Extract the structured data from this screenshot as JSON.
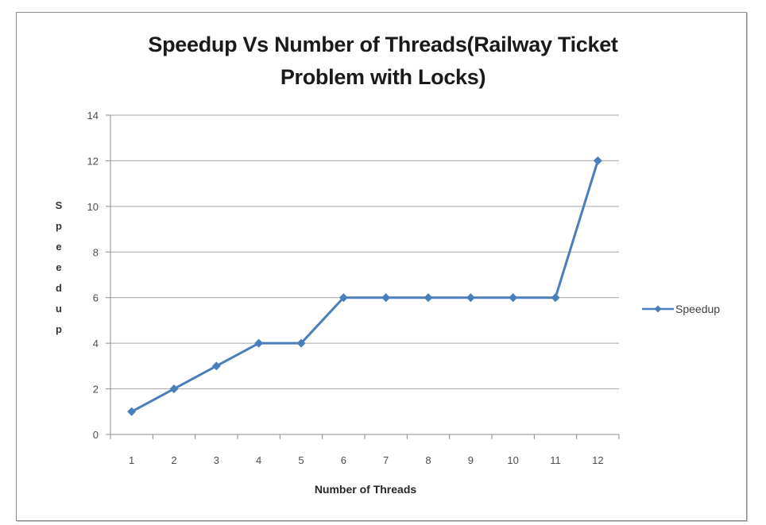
{
  "chart_data": {
    "type": "line",
    "title": "Speedup Vs Number of Threads(Railway Ticket Problem with Locks)",
    "title_lines": [
      "Speedup Vs Number of Threads(Railway Ticket",
      "Problem with Locks)"
    ],
    "xlabel": "Number of Threads",
    "ylabel": "Speedup",
    "categories": [
      1,
      2,
      3,
      4,
      5,
      6,
      7,
      8,
      9,
      10,
      11,
      12
    ],
    "x": [
      1,
      2,
      3,
      4,
      5,
      6,
      7,
      8,
      9,
      10,
      11,
      12
    ],
    "series": [
      {
        "name": "Speedup",
        "values": [
          1,
          2,
          3,
          4,
          4,
          6,
          6,
          6,
          6,
          6,
          6,
          12
        ],
        "color": "#4a7ebb",
        "marker": "diamond"
      }
    ],
    "ylim": [
      0,
      14
    ],
    "yticks": [
      0,
      2,
      4,
      6,
      8,
      10,
      12,
      14
    ],
    "grid": {
      "horizontal": true,
      "vertical": false
    },
    "legend": {
      "position": "right",
      "entries": [
        "Speedup"
      ]
    }
  },
  "colors": {
    "series": "#4a7ebb",
    "gridline": "#a6a6a6",
    "axis": "#8c8c8c",
    "frame": "#8c8c8c"
  }
}
